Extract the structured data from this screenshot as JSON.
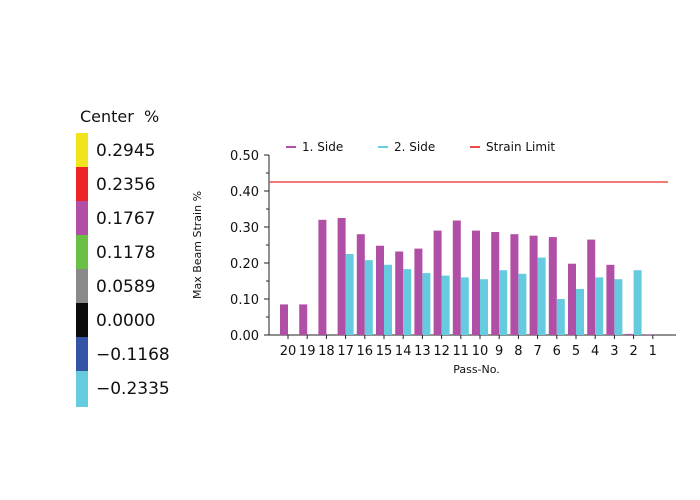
{
  "color_legend": {
    "title": "Center  %",
    "items": [
      {
        "label": "0.2945",
        "color": "#f2e41b"
      },
      {
        "label": "0.2356",
        "color": "#ee2325"
      },
      {
        "label": "0.1767",
        "color": "#b04fa5"
      },
      {
        "label": "0.1178",
        "color": "#6abf45"
      },
      {
        "label": "0.0589",
        "color": "#8a8a8a"
      },
      {
        "label": "0.0000",
        "color": "#0a0a0a"
      },
      {
        "label": "−0.1168",
        "color": "#3654a5"
      },
      {
        "label": "−0.2335",
        "color": "#67cbe0"
      }
    ]
  },
  "chart_data": {
    "type": "bar",
    "xlabel": "Pass-No.",
    "ylabel": "Max Beam Strain %",
    "ylim": [
      0,
      0.5
    ],
    "yticks": [
      "0.00",
      "0.10",
      "0.20",
      "0.30",
      "0.40",
      "0.50"
    ],
    "categories": [
      "20",
      "19",
      "18",
      "17",
      "16",
      "15",
      "14",
      "13",
      "12",
      "11",
      "10",
      "9",
      "8",
      "7",
      "6",
      "5",
      "4",
      "3",
      "2",
      "1"
    ],
    "series": [
      {
        "name": "1. Side",
        "color": "#b04fa5",
        "values": [
          0.085,
          0.085,
          0.32,
          0.325,
          0.28,
          0.248,
          0.232,
          0.24,
          0.29,
          0.318,
          0.29,
          0.286,
          0.28,
          0.276,
          0.272,
          0.198,
          0.265,
          0.195,
          0.003,
          0.002
        ]
      },
      {
        "name": "2. Side",
        "color": "#67cbe0",
        "values": [
          0,
          0,
          0,
          0.225,
          0.208,
          0.195,
          0.183,
          0.172,
          0.165,
          0.16,
          0.155,
          0.18,
          0.17,
          0.215,
          0.1,
          0.128,
          0.16,
          0.155,
          0.18,
          0
        ]
      }
    ],
    "reference_lines": [
      {
        "name": "Strain Limit",
        "value": 0.425,
        "color": "#ef4b4b"
      }
    ],
    "legend_position": "top"
  }
}
